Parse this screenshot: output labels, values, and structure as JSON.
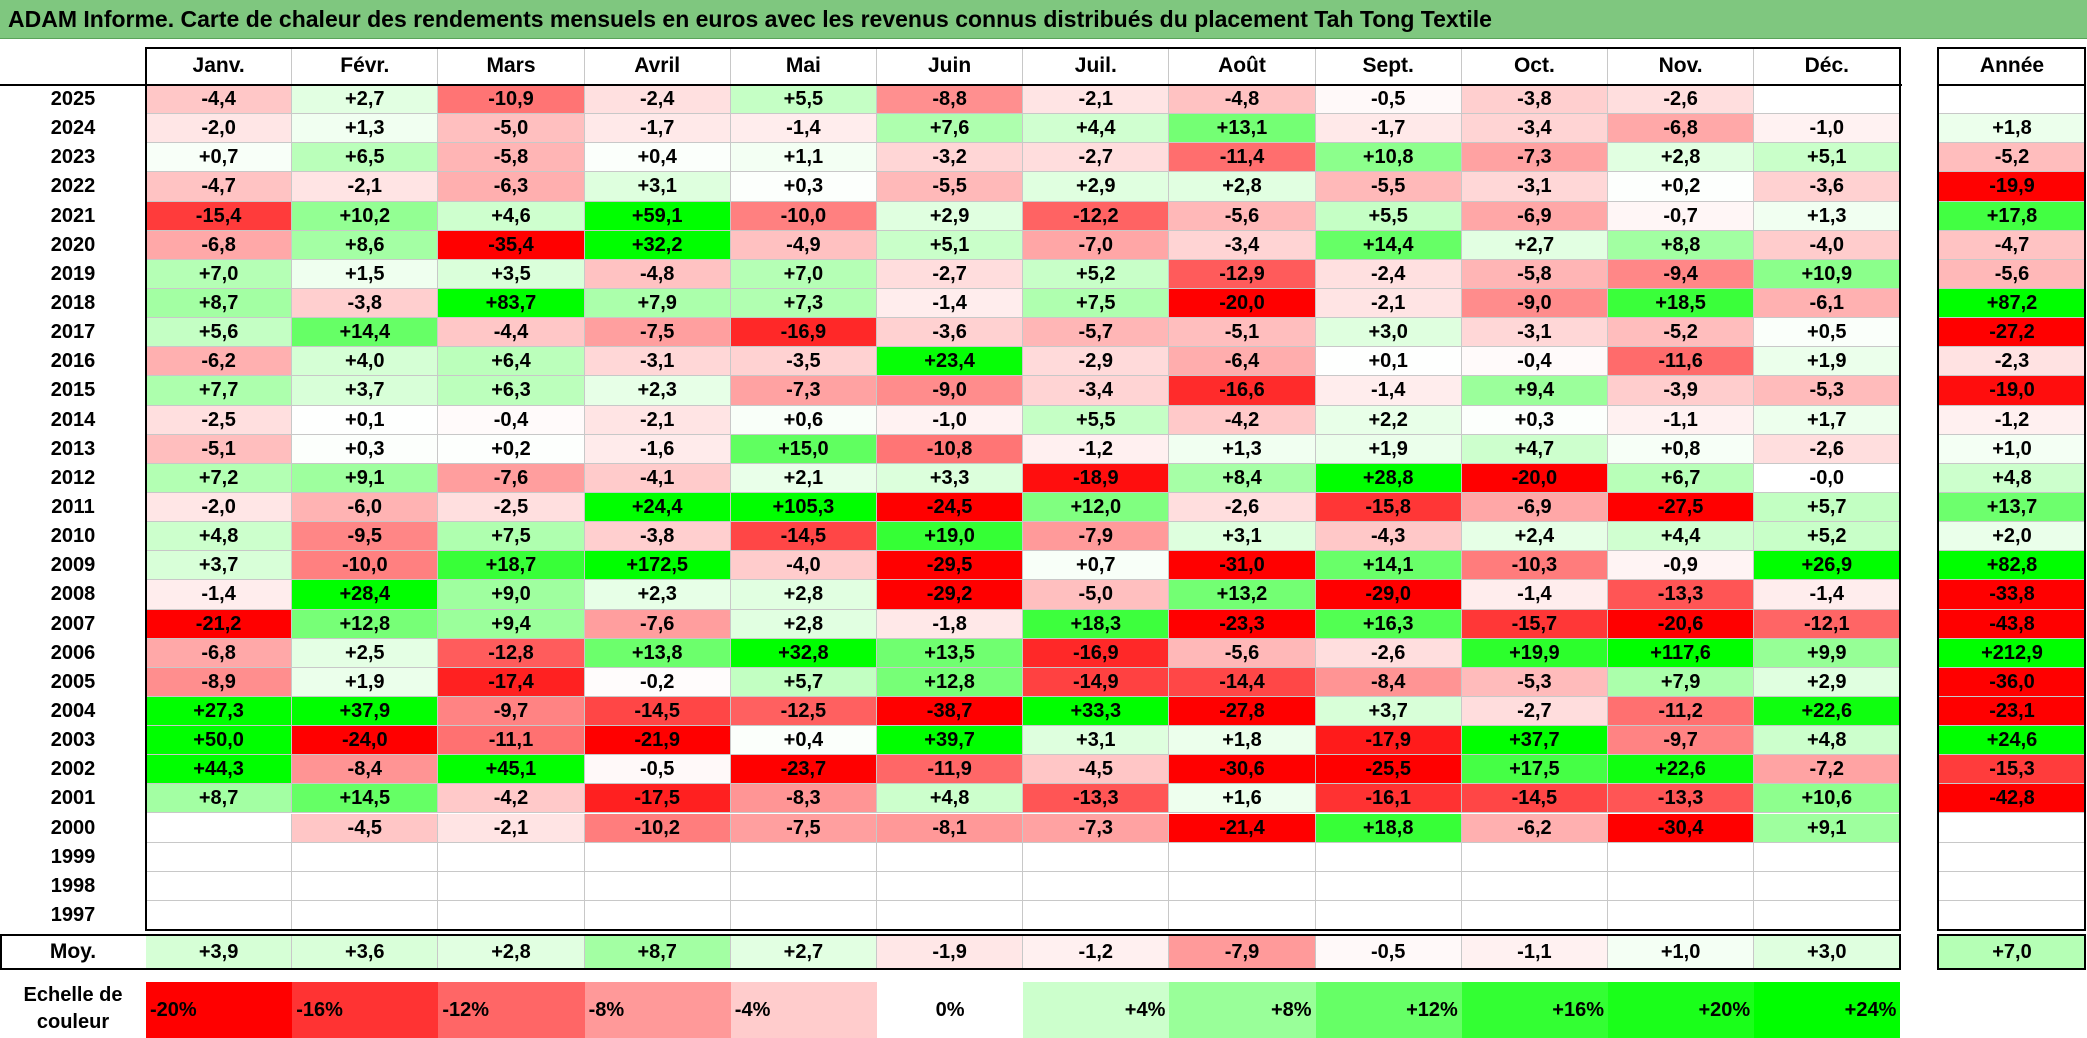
{
  "title": "ADAM Informe. Carte de chaleur des rendements mensuels en euros avec les revenus connus distribués du placement Tah Tong Textile",
  "chart_data": {
    "type": "heatmap",
    "title": "ADAM Informe. Carte de chaleur des rendements mensuels en euros avec les revenus connus distribués du placement Tah Tong Textile",
    "months": [
      "Janv.",
      "Févr.",
      "Mars",
      "Avril",
      "Mai",
      "Juin",
      "Juil.",
      "Août",
      "Sept.",
      "Oct.",
      "Nov.",
      "Déc."
    ],
    "year_header": "Année",
    "rows": [
      {
        "year": "2025",
        "months": [
          "-4,4",
          "+2,7",
          "-10,9",
          "-2,4",
          "+5,5",
          "-8,8",
          "-2,1",
          "-4,8",
          "-0,5",
          "-3,8",
          "-2,6",
          ""
        ],
        "annual": ""
      },
      {
        "year": "2024",
        "months": [
          "-2,0",
          "+1,3",
          "-5,0",
          "-1,7",
          "-1,4",
          "+7,6",
          "+4,4",
          "+13,1",
          "-1,7",
          "-3,4",
          "-6,8",
          "-1,0"
        ],
        "annual": "+1,8"
      },
      {
        "year": "2023",
        "months": [
          "+0,7",
          "+6,5",
          "-5,8",
          "+0,4",
          "+1,1",
          "-3,2",
          "-2,7",
          "-11,4",
          "+10,8",
          "-7,3",
          "+2,8",
          "+5,1"
        ],
        "annual": "-5,2"
      },
      {
        "year": "2022",
        "months": [
          "-4,7",
          "-2,1",
          "-6,3",
          "+3,1",
          "+0,3",
          "-5,5",
          "+2,9",
          "+2,8",
          "-5,5",
          "-3,1",
          "+0,2",
          "-3,6"
        ],
        "annual": "-19,9"
      },
      {
        "year": "2021",
        "months": [
          "-15,4",
          "+10,2",
          "+4,6",
          "+59,1",
          "-10,0",
          "+2,9",
          "-12,2",
          "-5,6",
          "+5,5",
          "-6,9",
          "-0,7",
          "+1,3"
        ],
        "annual": "+17,8"
      },
      {
        "year": "2020",
        "months": [
          "-6,8",
          "+8,6",
          "-35,4",
          "+32,2",
          "-4,9",
          "+5,1",
          "-7,0",
          "-3,4",
          "+14,4",
          "+2,7",
          "+8,8",
          "-4,0"
        ],
        "annual": "-4,7"
      },
      {
        "year": "2019",
        "months": [
          "+7,0",
          "+1,5",
          "+3,5",
          "-4,8",
          "+7,0",
          "-2,7",
          "+5,2",
          "-12,9",
          "-2,4",
          "-5,8",
          "-9,4",
          "+10,9"
        ],
        "annual": "-5,6"
      },
      {
        "year": "2018",
        "months": [
          "+8,7",
          "-3,8",
          "+83,7",
          "+7,9",
          "+7,3",
          "-1,4",
          "+7,5",
          "-20,0",
          "-2,1",
          "-9,0",
          "+18,5",
          "-6,1"
        ],
        "annual": "+87,2"
      },
      {
        "year": "2017",
        "months": [
          "+5,6",
          "+14,4",
          "-4,4",
          "-7,5",
          "-16,9",
          "-3,6",
          "-5,7",
          "-5,1",
          "+3,0",
          "-3,1",
          "-5,2",
          "+0,5"
        ],
        "annual": "-27,2"
      },
      {
        "year": "2016",
        "months": [
          "-6,2",
          "+4,0",
          "+6,4",
          "-3,1",
          "-3,5",
          "+23,4",
          "-2,9",
          "-6,4",
          "+0,1",
          "-0,4",
          "-11,6",
          "+1,9"
        ],
        "annual": "-2,3"
      },
      {
        "year": "2015",
        "months": [
          "+7,7",
          "+3,7",
          "+6,3",
          "+2,3",
          "-7,3",
          "-9,0",
          "-3,4",
          "-16,6",
          "-1,4",
          "+9,4",
          "-3,9",
          "-5,3"
        ],
        "annual": "-19,0"
      },
      {
        "year": "2014",
        "months": [
          "-2,5",
          "+0,1",
          "-0,4",
          "-2,1",
          "+0,6",
          "-1,0",
          "+5,5",
          "-4,2",
          "+2,2",
          "+0,3",
          "-1,1",
          "+1,7"
        ],
        "annual": "-1,2"
      },
      {
        "year": "2013",
        "months": [
          "-5,1",
          "+0,3",
          "+0,2",
          "-1,6",
          "+15,0",
          "-10,8",
          "-1,2",
          "+1,3",
          "+1,9",
          "+4,7",
          "+0,8",
          "-2,6"
        ],
        "annual": "+1,0"
      },
      {
        "year": "2012",
        "months": [
          "+7,2",
          "+9,1",
          "-7,6",
          "-4,1",
          "+2,1",
          "+3,3",
          "-18,9",
          "+8,4",
          "+28,8",
          "-20,0",
          "+6,7",
          "-0,0"
        ],
        "annual": "+4,8"
      },
      {
        "year": "2011",
        "months": [
          "-2,0",
          "-6,0",
          "-2,5",
          "+24,4",
          "+105,3",
          "-24,5",
          "+12,0",
          "-2,6",
          "-15,8",
          "-6,9",
          "-27,5",
          "+5,7"
        ],
        "annual": "+13,7"
      },
      {
        "year": "2010",
        "months": [
          "+4,8",
          "-9,5",
          "+7,5",
          "-3,8",
          "-14,5",
          "+19,0",
          "-7,9",
          "+3,1",
          "-4,3",
          "+2,4",
          "+4,4",
          "+5,2"
        ],
        "annual": "+2,0"
      },
      {
        "year": "2009",
        "months": [
          "+3,7",
          "-10,0",
          "+18,7",
          "+172,5",
          "-4,0",
          "-29,5",
          "+0,7",
          "-31,0",
          "+14,1",
          "-10,3",
          "-0,9",
          "+26,9"
        ],
        "annual": "+82,8"
      },
      {
        "year": "2008",
        "months": [
          "-1,4",
          "+28,4",
          "+9,0",
          "+2,3",
          "+2,8",
          "-29,2",
          "-5,0",
          "+13,2",
          "-29,0",
          "-1,4",
          "-13,3",
          "-1,4"
        ],
        "annual": "-33,8"
      },
      {
        "year": "2007",
        "months": [
          "-21,2",
          "+12,8",
          "+9,4",
          "-7,6",
          "+2,8",
          "-1,8",
          "+18,3",
          "-23,3",
          "+16,3",
          "-15,7",
          "-20,6",
          "-12,1"
        ],
        "annual": "-43,8"
      },
      {
        "year": "2006",
        "months": [
          "-6,8",
          "+2,5",
          "-12,8",
          "+13,8",
          "+32,8",
          "+13,5",
          "-16,9",
          "-5,6",
          "-2,6",
          "+19,9",
          "+117,6",
          "+9,9"
        ],
        "annual": "+212,9"
      },
      {
        "year": "2005",
        "months": [
          "-8,9",
          "+1,9",
          "-17,4",
          "-0,2",
          "+5,7",
          "+12,8",
          "-14,9",
          "-14,4",
          "-8,4",
          "-5,3",
          "+7,9",
          "+2,9"
        ],
        "annual": "-36,0"
      },
      {
        "year": "2004",
        "months": [
          "+27,3",
          "+37,9",
          "-9,7",
          "-14,5",
          "-12,5",
          "-38,7",
          "+33,3",
          "-27,8",
          "+3,7",
          "-2,7",
          "-11,2",
          "+22,6"
        ],
        "annual": "-23,1"
      },
      {
        "year": "2003",
        "months": [
          "+50,0",
          "-24,0",
          "-11,1",
          "-21,9",
          "+0,4",
          "+39,7",
          "+3,1",
          "+1,8",
          "-17,9",
          "+37,7",
          "-9,7",
          "+4,8"
        ],
        "annual": "+24,6"
      },
      {
        "year": "2002",
        "months": [
          "+44,3",
          "-8,4",
          "+45,1",
          "-0,5",
          "-23,7",
          "-11,9",
          "-4,5",
          "-30,6",
          "-25,5",
          "+17,5",
          "+22,6",
          "-7,2"
        ],
        "annual": "-15,3"
      },
      {
        "year": "2001",
        "months": [
          "+8,7",
          "+14,5",
          "-4,2",
          "-17,5",
          "-8,3",
          "+4,8",
          "-13,3",
          "+1,6",
          "-16,1",
          "-14,5",
          "-13,3",
          "+10,6"
        ],
        "annual": "-42,8"
      },
      {
        "year": "2000",
        "months": [
          "",
          "-4,5",
          "-2,1",
          "-10,2",
          "-7,5",
          "-8,1",
          "-7,3",
          "-21,4",
          "+18,8",
          "-6,2",
          "-30,4",
          "+9,1"
        ],
        "annual": ""
      },
      {
        "year": "1999",
        "months": [
          "",
          "",
          "",
          "",
          "",
          "",
          "",
          "",
          "",
          "",
          "",
          ""
        ],
        "annual": ""
      },
      {
        "year": "1998",
        "months": [
          "",
          "",
          "",
          "",
          "",
          "",
          "",
          "",
          "",
          "",
          "",
          ""
        ],
        "annual": ""
      },
      {
        "year": "1997",
        "months": [
          "",
          "",
          "",
          "",
          "",
          "",
          "",
          "",
          "",
          "",
          "",
          ""
        ],
        "annual": ""
      }
    ],
    "average": {
      "label": "Moy.",
      "months": [
        "+3,9",
        "+3,6",
        "+2,8",
        "+8,7",
        "+2,7",
        "-1,9",
        "-1,2",
        "-7,9",
        "-0,5",
        "-1,1",
        "+1,0",
        "+3,0"
      ],
      "annual": "+7,0"
    },
    "scale": {
      "label": "Echelle de couleur",
      "items": [
        {
          "label": "-20%",
          "value": -20,
          "color": "#ff0000"
        },
        {
          "label": "-16%",
          "value": -16,
          "color": "#ff3333"
        },
        {
          "label": "-12%",
          "value": -12,
          "color": "#ff6666"
        },
        {
          "label": "-8%",
          "value": -8,
          "color": "#ff9999"
        },
        {
          "label": "-4%",
          "value": -4,
          "color": "#ffcccc"
        },
        {
          "label": "0%",
          "value": 0,
          "color": "#ffffff"
        },
        {
          "label": "+4%",
          "value": 4,
          "color": "#ccffcc"
        },
        {
          "label": "+8%",
          "value": 8,
          "color": "#99ff99"
        },
        {
          "label": "+12%",
          "value": 12,
          "color": "#66ff66"
        },
        {
          "label": "+16%",
          "value": 16,
          "color": "#33ff33"
        },
        {
          "label": "+20%",
          "value": 20,
          "color": "#1aff1a"
        },
        {
          "label": "+24%",
          "value": 24,
          "color": "#00ff00"
        }
      ]
    }
  }
}
